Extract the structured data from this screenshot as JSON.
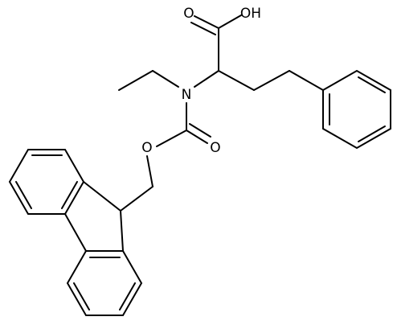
{
  "atoms": {
    "acid_o": "O",
    "acid_oh": "OH",
    "n": "N",
    "ester_o": "O",
    "carbonyl_o": "O"
  }
}
